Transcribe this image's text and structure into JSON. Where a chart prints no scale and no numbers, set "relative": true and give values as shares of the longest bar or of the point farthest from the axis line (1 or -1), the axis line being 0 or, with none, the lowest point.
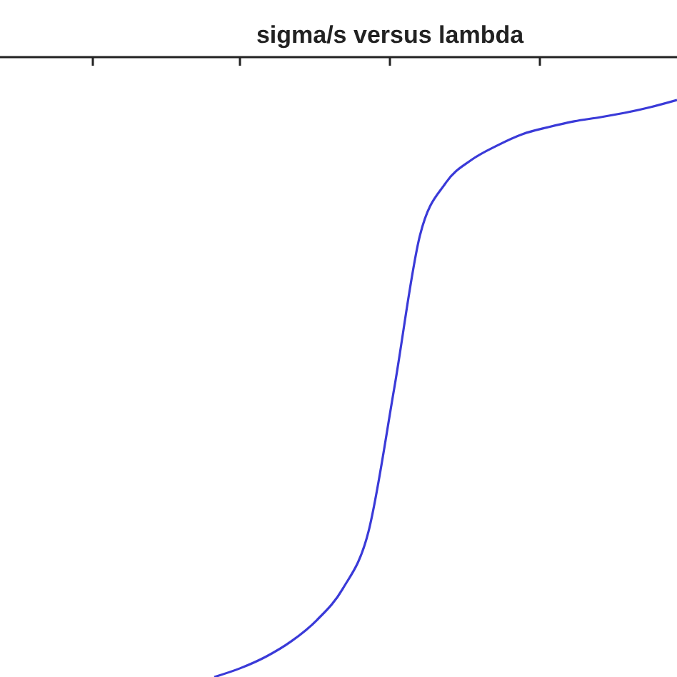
{
  "chart_data": {
    "type": "line",
    "title": "sigma/s versus lambda",
    "relative": true,
    "categories": [
      null,
      null,
      null,
      null,
      null,
      null,
      null,
      null,
      null,
      null,
      null,
      null,
      null,
      null,
      null,
      null,
      null,
      null,
      null
    ],
    "series": [
      {
        "color": "#3a3ad8",
        "values": [
          0,
          0.015,
          0.035,
          0.062,
          0.099,
          0.153,
          0.252,
          0.5,
          0.765,
          0.856,
          0.896,
          0.921,
          0.941,
          0.953,
          0.963,
          0.97,
          0.978,
          0.988,
          1
        ]
      }
    ],
    "line_style": "solid"
  }
}
